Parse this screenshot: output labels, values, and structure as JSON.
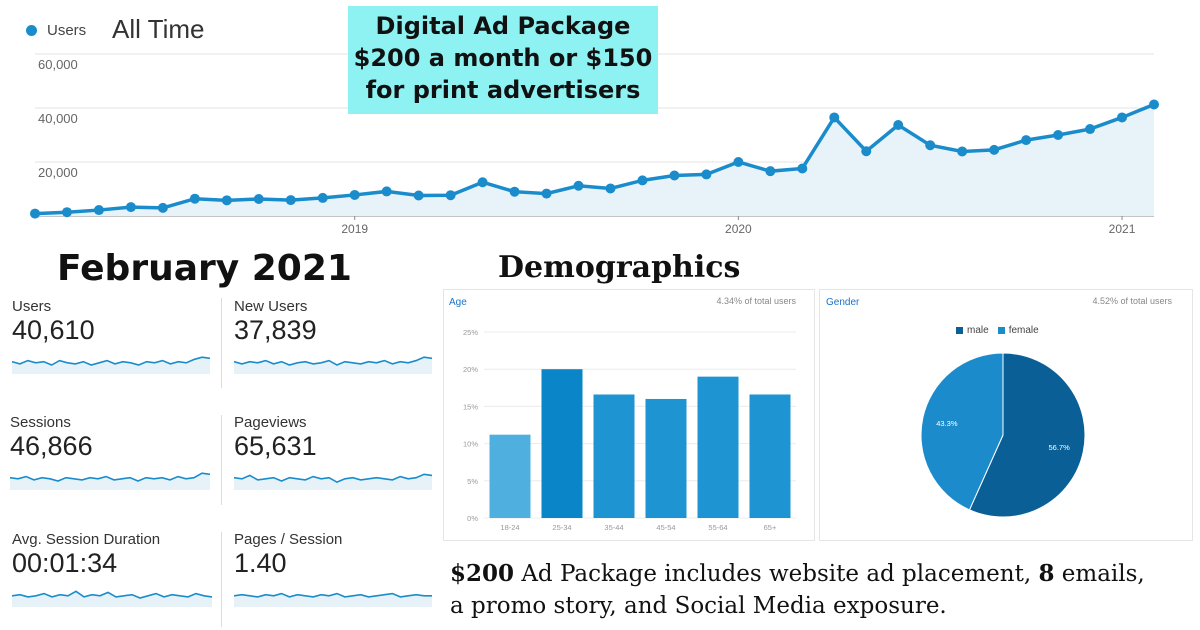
{
  "main_chart": {
    "legend_label": "Users",
    "range_label": "All Time",
    "y_ticks": [
      "60,000",
      "40,000",
      "20,000"
    ],
    "x_ticks": [
      "2019",
      "2020",
      "2021"
    ],
    "line_color": "#1a8ccc"
  },
  "chart_data": [
    {
      "type": "area",
      "series": [
        {
          "name": "Users",
          "values": [
            900,
            1400,
            2200,
            3300,
            3000,
            6400,
            5800,
            6300,
            5900,
            6700,
            7800,
            9100,
            7600,
            7700,
            12500,
            9000,
            8300,
            11200,
            10200,
            13200,
            15000,
            15400,
            20000,
            16600,
            17600,
            36500,
            24000,
            33700,
            26200,
            23900,
            24500,
            28100,
            30000,
            32200,
            36500,
            41300
          ]
        }
      ],
      "ylim": [
        0,
        60000
      ],
      "x_range": [
        "2018-03",
        "2021-02"
      ]
    },
    {
      "type": "bar",
      "title": "Age",
      "categories": [
        "18-24",
        "25-34",
        "35-44",
        "45-54",
        "55-64",
        "65+"
      ],
      "values": [
        11.2,
        20.0,
        16.6,
        16.0,
        19.0,
        16.6
      ],
      "yticks": [
        "25%",
        "20%",
        "15%",
        "10%",
        "5%",
        "0%"
      ],
      "ylim": [
        0,
        25
      ],
      "note": "4.34% of total users"
    },
    {
      "type": "pie",
      "title": "Gender",
      "categories": [
        "male",
        "female"
      ],
      "values": [
        56.7,
        43.3
      ],
      "labels": [
        "56.7%",
        "43.3%"
      ],
      "colors": [
        "#0a5f96",
        "#1b8bcc"
      ],
      "note": "4.52% of total users"
    }
  ],
  "promo": {
    "line1": "Digital Ad Package",
    "line2": "$200 a month or $150",
    "line3": "for print advertisers",
    "bg_color": "#8ff2f2"
  },
  "month_title": "February 2021",
  "metrics": [
    {
      "label": "Users",
      "value": "40,610",
      "spark": [
        0.55,
        0.45,
        0.6,
        0.5,
        0.55,
        0.4,
        0.6,
        0.5,
        0.45,
        0.55,
        0.4,
        0.5,
        0.6,
        0.45,
        0.55,
        0.5,
        0.4,
        0.55,
        0.5,
        0.6,
        0.45,
        0.55,
        0.5,
        0.65,
        0.75,
        0.7
      ]
    },
    {
      "label": "New Users",
      "value": "37,839",
      "spark": [
        0.55,
        0.45,
        0.55,
        0.5,
        0.6,
        0.45,
        0.55,
        0.4,
        0.5,
        0.55,
        0.45,
        0.5,
        0.6,
        0.4,
        0.55,
        0.5,
        0.45,
        0.55,
        0.5,
        0.6,
        0.45,
        0.55,
        0.5,
        0.6,
        0.75,
        0.7
      ]
    },
    {
      "label": "Sessions",
      "value": "46,866",
      "spark": [
        0.55,
        0.5,
        0.6,
        0.45,
        0.55,
        0.5,
        0.4,
        0.55,
        0.5,
        0.45,
        0.55,
        0.5,
        0.6,
        0.45,
        0.5,
        0.55,
        0.4,
        0.55,
        0.5,
        0.55,
        0.45,
        0.6,
        0.5,
        0.55,
        0.75,
        0.7
      ]
    },
    {
      "label": "Pageviews",
      "value": "65,631",
      "spark": [
        0.55,
        0.5,
        0.65,
        0.45,
        0.5,
        0.55,
        0.4,
        0.55,
        0.5,
        0.45,
        0.6,
        0.5,
        0.55,
        0.35,
        0.5,
        0.55,
        0.45,
        0.5,
        0.55,
        0.5,
        0.45,
        0.6,
        0.5,
        0.55,
        0.7,
        0.65
      ]
    },
    {
      "label": "Avg. Session Duration",
      "value": "00:01:34",
      "spark": [
        0.5,
        0.55,
        0.45,
        0.5,
        0.6,
        0.45,
        0.55,
        0.5,
        0.7,
        0.45,
        0.55,
        0.5,
        0.65,
        0.45,
        0.5,
        0.55,
        0.4,
        0.5,
        0.6,
        0.45,
        0.55,
        0.5,
        0.45,
        0.6,
        0.5,
        0.45
      ]
    },
    {
      "label": "Pages / Session",
      "value": "1.40",
      "spark": [
        0.5,
        0.55,
        0.5,
        0.45,
        0.55,
        0.5,
        0.6,
        0.45,
        0.55,
        0.5,
        0.45,
        0.55,
        0.5,
        0.6,
        0.45,
        0.5,
        0.55,
        0.45,
        0.5,
        0.55,
        0.6,
        0.45,
        0.5,
        0.55,
        0.5,
        0.5
      ]
    }
  ],
  "demographics": {
    "title": "Demographics",
    "age_title": "Age",
    "age_note": "4.34% of total users",
    "gender_title": "Gender",
    "gender_note": "4.52% of total users",
    "legend_male": "male",
    "legend_female": "female"
  },
  "bottom": {
    "price": "$200",
    "text1": " Ad Package includes website ad placement, ",
    "emails_count": "8",
    "text2": " emails,",
    "text3": "a promo story, and Social Media exposure."
  }
}
